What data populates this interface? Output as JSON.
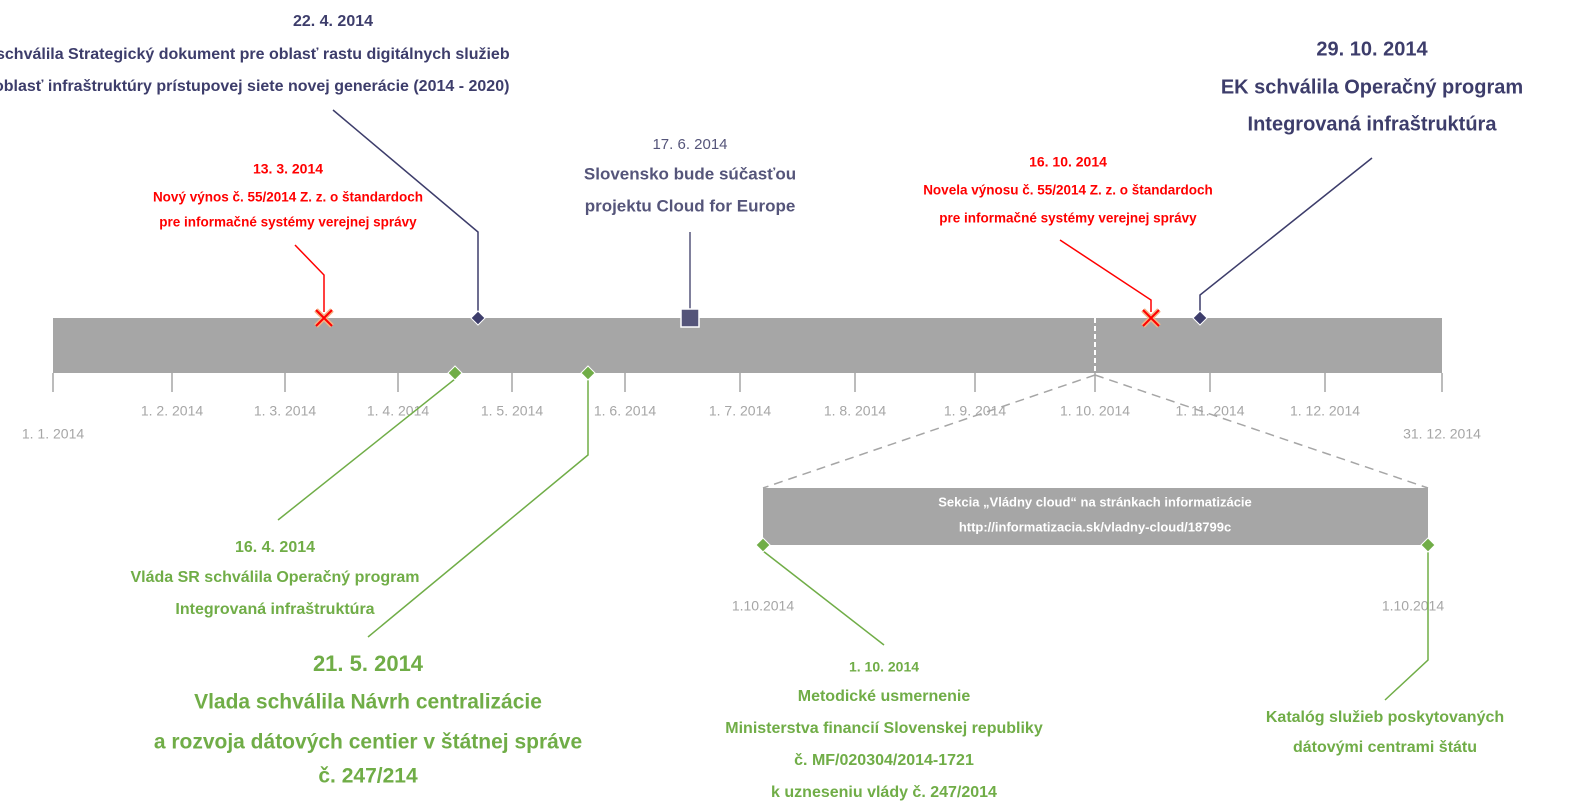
{
  "axis_labels": [
    "1. 1. 2014",
    "1. 2. 2014",
    "1. 3. 2014",
    "1. 4. 2014",
    "1. 5. 2014",
    "1. 6. 2014",
    "1. 7. 2014",
    "1. 8. 2014",
    "1. 9. 2014",
    "1. 10. 2014",
    "1. 11. 2014",
    "1. 12. 2014",
    "31. 12. 2014"
  ],
  "events": [
    {
      "date": "22. 4. 2014",
      "lines": [
        "schválila Strategický dokument pre oblasť rastu digitálnych služieb",
        "oblasť infraštruktúry prístupovej siete novej generácie (2014 - 2020)"
      ],
      "color": "#3d3d6b",
      "marker": "diamond"
    },
    {
      "date": "13. 3. 2014",
      "lines": [
        "Nový výnos č. 55/2014 Z. z. o štandardoch",
        "pre informačné systémy verejnej správy"
      ],
      "color": "#ff0000",
      "marker": "cross"
    },
    {
      "date": "17. 6. 2014",
      "lines": [
        "Slovensko bude súčasťou",
        "projektu Cloud for Europe"
      ],
      "color": "#55557a",
      "marker": "square"
    },
    {
      "date": "16. 10. 2014",
      "lines": [
        "Novela výnosu č. 55/2014 Z. z. o štandardoch",
        "pre informačné systémy verejnej správy"
      ],
      "color": "#ff0000",
      "marker": "cross"
    },
    {
      "date": "29. 10. 2014",
      "lines": [
        "EK schválila Operačný program",
        "Integrovaná infraštruktúra"
      ],
      "color": "#3d3d6b",
      "marker": "diamond"
    },
    {
      "date": "16. 4. 2014",
      "lines": [
        "Vláda SR schválila Operačný program",
        "Integrovaná infraštruktúra"
      ],
      "color": "#70ad47",
      "marker": "diamond"
    },
    {
      "date": "21. 5. 2014",
      "lines": [
        "Vlada schválila Návrh centralizácie",
        "a rozvoja dátových centier v štátnej správe",
        "č. 247/214"
      ],
      "color": "#70ad47",
      "marker": "diamond"
    },
    {
      "date": "1. 10. 2014",
      "lines": [
        "Metodické usmernenie",
        "Ministerstva financií Slovenskej republiky",
        "č. MF/020304/2014-1721",
        "k uzneseniu vlády č. 247/2014"
      ],
      "color": "#70ad47",
      "marker": "diamond"
    },
    {
      "lines": [
        "Katalóg služieb poskytovaných",
        "dátovými centrami štátu"
      ],
      "color": "#70ad47",
      "marker": "diamond"
    }
  ],
  "zoom": {
    "lines": [
      "Sekcia „Vládny cloud“ na stránkach informatizácie",
      "http://informatizacia.sk/vladny-cloud/18799c"
    ],
    "start_label": "1.10.2014",
    "end_label": "1.10.2014"
  }
}
